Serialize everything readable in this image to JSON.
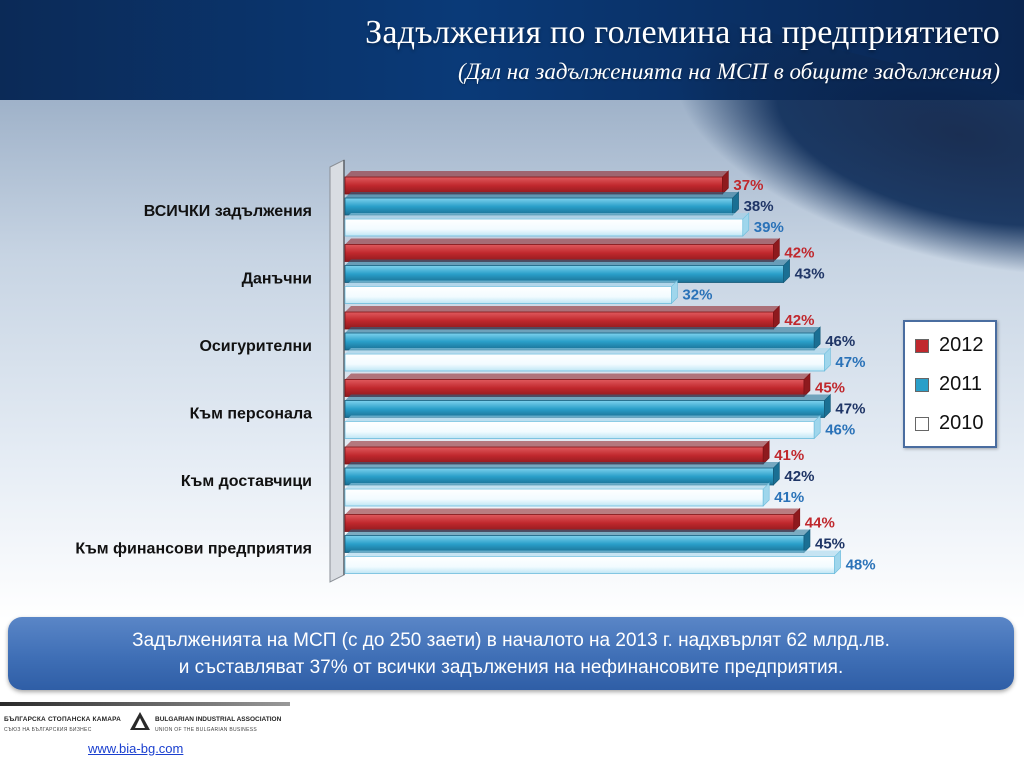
{
  "header": {
    "title": "Задължения по големина на предприятието",
    "subtitle": "(Дял на задълженията на МСП в общите задължения)"
  },
  "chart_data": {
    "type": "bar",
    "orientation": "horizontal",
    "categories": [
      "ВСИЧКИ задължения",
      "Данъчни",
      "Осигурителни",
      "Към персонала",
      "Към доставчици",
      "Към финансови предприятия"
    ],
    "series": [
      {
        "name": "2012",
        "values": [
          37,
          42,
          42,
          45,
          41,
          44
        ],
        "labels": [
          "37%",
          "42%",
          "42%",
          "45%",
          "41%",
          "44%"
        ],
        "color": "#c0282d",
        "label_color": "#c0282d"
      },
      {
        "name": "2011",
        "values": [
          38,
          43,
          46,
          47,
          42,
          45
        ],
        "labels": [
          "38%",
          "43%",
          "46%",
          "47%",
          "42%",
          "45%"
        ],
        "color": "#2a9fc9",
        "label_color": "#1f3566"
      },
      {
        "name": "2010",
        "values": [
          39,
          32,
          47,
          46,
          41,
          48
        ],
        "labels": [
          "39%",
          "32%",
          "47%",
          "46%",
          "41%",
          "48%"
        ],
        "color": "#ffffff",
        "label_color": "#2a72b8"
      }
    ],
    "legend_position": "right",
    "grid": false
  },
  "callout": {
    "line1": "Задълженията на  МСП (с до 250 заети) в началото на 2013 г. надхвърлят 62 млрд.лв.",
    "line2": "и съставляват 37% от всички задължения на нефинансовите предприятия."
  },
  "footer": {
    "logo_bg": "БЪЛГАРСКА СТОПАНСКА КАМАРА",
    "logo_bg_sub": "СЪЮЗ НА БЪЛГАРСКИЯ БИЗНЕС",
    "logo_en": "BULGARIAN INDUSTRIAL ASSOCIATION",
    "logo_en_sub": "UNION OF THE BULGARIAN BUSINESS",
    "url": "www.bia-bg.com"
  },
  "colors": {
    "header_bg": "#0b2a57",
    "callout_bg": "#3f6fb6",
    "series_2012": "#c0282d",
    "series_2011": "#2a9fc9",
    "series_2010": "#ffffff"
  }
}
